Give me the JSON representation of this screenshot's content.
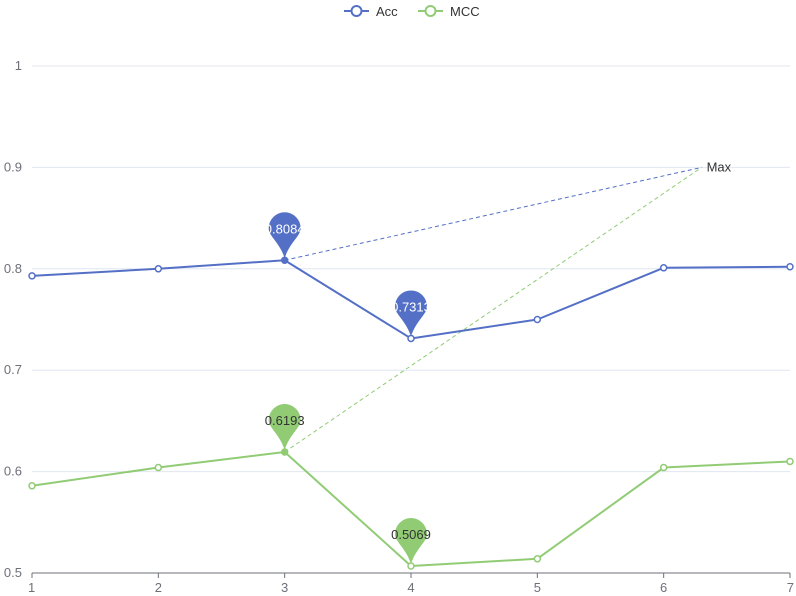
{
  "chart_data": {
    "type": "line",
    "x": [
      "1",
      "2",
      "3",
      "4",
      "5",
      "6",
      "7"
    ],
    "series": [
      {
        "name": "Acc",
        "color": "#5470c6",
        "values": [
          0.793,
          0.8,
          0.8084,
          0.7313,
          0.75,
          0.801,
          0.802
        ],
        "pins": [
          {
            "index": 2,
            "label": "0.8084"
          },
          {
            "index": 3,
            "label": "0.7313"
          }
        ]
      },
      {
        "name": "MCC",
        "color": "#91cc75",
        "values": [
          0.586,
          0.604,
          0.6193,
          0.5069,
          0.514,
          0.604,
          0.61
        ],
        "pins": [
          {
            "index": 2,
            "label": "0.6193"
          },
          {
            "index": 3,
            "label": "0.5069"
          }
        ]
      }
    ],
    "mark_line": {
      "label": "Max",
      "x": 6.3,
      "y": 0.9,
      "from_index": 2
    },
    "yticks": [
      "0.5",
      "0.6",
      "0.7",
      "0.8",
      "0.9",
      "1"
    ],
    "ylim": [
      0.5,
      1
    ],
    "grid": true,
    "legend_position": "top-center",
    "colors": {
      "axis": "#6e7079",
      "grid": "#e0e6f1",
      "tick_text": "#6e7079"
    }
  }
}
